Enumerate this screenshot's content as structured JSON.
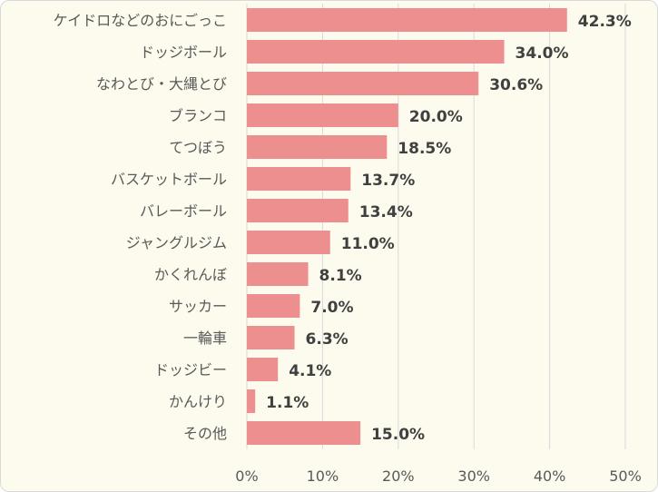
{
  "chart_data": {
    "type": "bar",
    "orientation": "horizontal",
    "title": "",
    "xlabel": "",
    "ylabel": "",
    "categories": [
      "ケイドロなどのおにごっこ",
      "ドッジボール",
      "なわとび・大縄とび",
      "ブランコ",
      "てつぼう",
      "バスケットボール",
      "バレーボール",
      "ジャングルジム",
      "かくれんぼ",
      "サッカー",
      "一輪車",
      "ドッジビー",
      "かんけり",
      "その他"
    ],
    "values": [
      42.3,
      34.0,
      30.6,
      20.0,
      18.5,
      13.7,
      13.4,
      11.0,
      8.1,
      7.0,
      6.3,
      4.1,
      1.1,
      15.0
    ],
    "data_labels": [
      "42.3%",
      "34.0%",
      "30.6%",
      "20.0%",
      "18.5%",
      "13.7%",
      "13.4%",
      "11.0%",
      "8.1%",
      "7.0%",
      "6.3%",
      "4.1%",
      "1.1%",
      "15.0%"
    ],
    "xlim": [
      0,
      50
    ],
    "x_ticks": [
      "0%",
      "10%",
      "20%",
      "30%",
      "40%",
      "50%"
    ],
    "grid": true,
    "legend": "none",
    "colors": {
      "bar": "#ee8f8f",
      "grid": "#d9d9d9",
      "background": "#fcfbee"
    }
  }
}
